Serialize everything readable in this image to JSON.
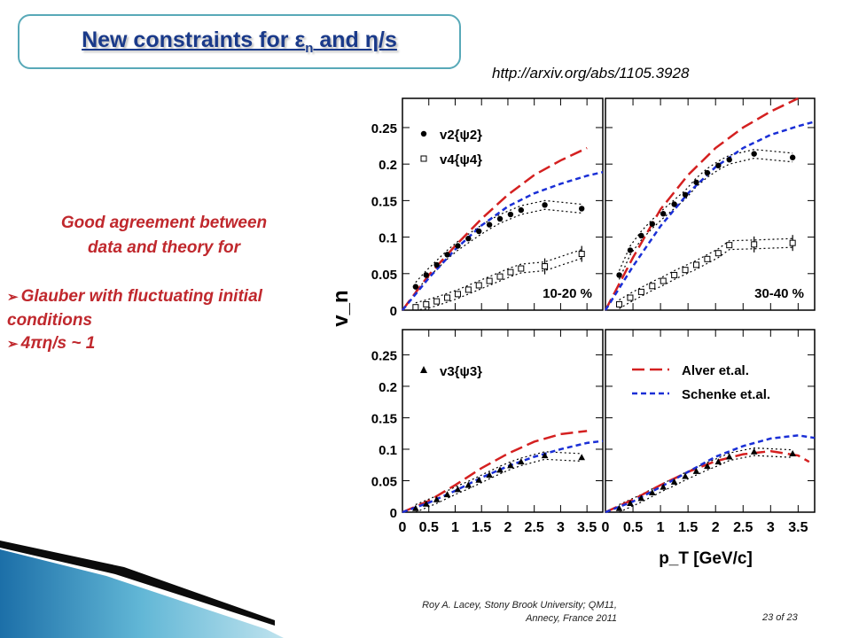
{
  "slide": {
    "title_main": "New constraints for ε",
    "title_sub": "n",
    "title_end": " and η/s",
    "url": "http://arxiv.org/abs/1105.3928",
    "claim_line1": "Good agreement between",
    "claim_line2": "data and theory for",
    "bullets": [
      "Glauber with fluctuating initial conditions",
      "4πη/s ~ 1"
    ],
    "footer_line1": "Roy A. Lacey, Stony Brook University; QM11,",
    "footer_line2": "Annecy, France 2011",
    "page": "23 of 23"
  },
  "colors": {
    "accent": "#c0282d",
    "title": "#1a3a8a",
    "frame": "#58a9b8",
    "alver": "#d42020",
    "schenke": "#1a2fd6"
  },
  "chart_data": {
    "type": "line",
    "xlabel": "p_T [GeV/c]",
    "ylabel": "v_n",
    "xlim": [
      0,
      3.8
    ],
    "ylim": [
      0,
      0.29
    ],
    "xticks": [
      "0",
      "0.5",
      "1",
      "1.5",
      "2",
      "2.5",
      "3",
      "3.5"
    ],
    "yticks": [
      "0",
      "0.05",
      "0.1",
      "0.15",
      "0.2",
      "0.25"
    ],
    "legend_theory": [
      "Alver et.al.",
      "Schenke et.al."
    ],
    "panels": [
      {
        "name": "10-20 %",
        "series": [
          {
            "name": "v2{ψ2}",
            "marker": "filled-circle",
            "x": [
              0.25,
              0.45,
              0.65,
              0.85,
              1.05,
              1.25,
              1.45,
              1.65,
              1.85,
              2.05,
              2.25,
              2.7,
              3.4
            ],
            "y": [
              0.032,
              0.048,
              0.062,
              0.076,
              0.088,
              0.098,
              0.108,
              0.117,
              0.125,
              0.131,
              0.137,
              0.144,
              0.139
            ]
          },
          {
            "name": "v4{ψ4}",
            "marker": "open-square",
            "x": [
              0.25,
              0.45,
              0.65,
              0.85,
              1.05,
              1.25,
              1.45,
              1.65,
              1.85,
              2.05,
              2.25,
              2.7,
              3.4
            ],
            "y": [
              0.004,
              0.008,
              0.012,
              0.017,
              0.022,
              0.028,
              0.034,
              0.04,
              0.046,
              0.052,
              0.057,
              0.06,
              0.077
            ]
          },
          {
            "name": "Alver et.al.",
            "style": "long-dash",
            "x": [
              0,
              0.5,
              1,
              1.5,
              2,
              2.5,
              3,
              3.5
            ],
            "y": [
              0,
              0.048,
              0.088,
              0.125,
              0.158,
              0.185,
              0.205,
              0.222
            ]
          },
          {
            "name": "Schenke et.al.",
            "style": "short-dash",
            "x": [
              0,
              0.5,
              1,
              1.5,
              2,
              2.5,
              3,
              3.5,
              3.8
            ],
            "y": [
              0,
              0.044,
              0.083,
              0.116,
              0.142,
              0.16,
              0.173,
              0.184,
              0.189
            ]
          }
        ]
      },
      {
        "name": "30-40 %",
        "series": [
          {
            "name": "v2{ψ2}",
            "marker": "filled-circle",
            "x": [
              0.25,
              0.45,
              0.65,
              0.85,
              1.05,
              1.25,
              1.45,
              1.65,
              1.85,
              2.05,
              2.25,
              2.7,
              3.4
            ],
            "y": [
              0.048,
              0.082,
              0.102,
              0.118,
              0.132,
              0.145,
              0.158,
              0.175,
              0.188,
              0.198,
              0.206,
              0.214,
              0.209
            ]
          },
          {
            "name": "v4{ψ4}",
            "marker": "open-square",
            "x": [
              0.25,
              0.45,
              0.65,
              0.85,
              1.05,
              1.25,
              1.45,
              1.65,
              1.85,
              2.05,
              2.25,
              2.7,
              3.4
            ],
            "y": [
              0.008,
              0.017,
              0.025,
              0.033,
              0.04,
              0.048,
              0.055,
              0.062,
              0.07,
              0.078,
              0.089,
              0.09,
              0.092
            ]
          },
          {
            "name": "Alver et.al.",
            "style": "long-dash",
            "x": [
              0,
              0.5,
              1,
              1.5,
              2,
              2.5,
              3,
              3.5
            ],
            "y": [
              0,
              0.072,
              0.138,
              0.185,
              0.222,
              0.25,
              0.272,
              0.29
            ]
          },
          {
            "name": "Schenke et.al.",
            "style": "short-dash",
            "x": [
              0,
              0.5,
              1,
              1.5,
              2,
              2.5,
              3,
              3.5,
              3.8
            ],
            "y": [
              0,
              0.06,
              0.115,
              0.16,
              0.196,
              0.222,
              0.24,
              0.252,
              0.258
            ]
          }
        ]
      },
      {
        "name": "",
        "series": [
          {
            "name": "v3{ψ3}",
            "marker": "filled-triangle",
            "x": [
              0.25,
              0.45,
              0.65,
              0.85,
              1.05,
              1.25,
              1.45,
              1.65,
              1.85,
              2.05,
              2.25,
              2.7,
              3.4
            ],
            "y": [
              0.006,
              0.013,
              0.02,
              0.028,
              0.036,
              0.043,
              0.051,
              0.059,
              0.067,
              0.074,
              0.08,
              0.09,
              0.087
            ]
          },
          {
            "name": "Alver et.al.",
            "style": "long-dash",
            "x": [
              0,
              0.5,
              1,
              1.5,
              2,
              2.5,
              3,
              3.5
            ],
            "y": [
              0,
              0.018,
              0.043,
              0.07,
              0.093,
              0.112,
              0.124,
              0.129
            ]
          },
          {
            "name": "Schenke et.al.",
            "style": "short-dash",
            "x": [
              0,
              0.5,
              1,
              1.5,
              2,
              2.5,
              3,
              3.5,
              3.8
            ],
            "y": [
              0,
              0.015,
              0.034,
              0.055,
              0.073,
              0.088,
              0.1,
              0.11,
              0.113
            ]
          }
        ]
      },
      {
        "name": "",
        "series": [
          {
            "name": "v3{ψ3}",
            "marker": "filled-triangle",
            "x": [
              0.25,
              0.45,
              0.65,
              0.85,
              1.05,
              1.25,
              1.45,
              1.65,
              1.85,
              2.05,
              2.25,
              2.7,
              3.4
            ],
            "y": [
              0.006,
              0.014,
              0.022,
              0.031,
              0.04,
              0.048,
              0.057,
              0.065,
              0.073,
              0.08,
              0.088,
              0.096,
              0.093
            ]
          },
          {
            "name": "Alver et.al.",
            "style": "long-dash",
            "x": [
              0,
              0.5,
              1,
              1.5,
              2,
              2.5,
              3,
              3.5,
              3.7
            ],
            "y": [
              0,
              0.02,
              0.043,
              0.064,
              0.081,
              0.092,
              0.097,
              0.09,
              0.08
            ]
          },
          {
            "name": "Schenke et.al.",
            "style": "short-dash",
            "x": [
              0,
              0.5,
              1,
              1.5,
              2,
              2.5,
              3,
              3.5,
              3.8
            ],
            "y": [
              0,
              0.017,
              0.04,
              0.064,
              0.088,
              0.105,
              0.117,
              0.122,
              0.118
            ]
          }
        ]
      }
    ]
  }
}
